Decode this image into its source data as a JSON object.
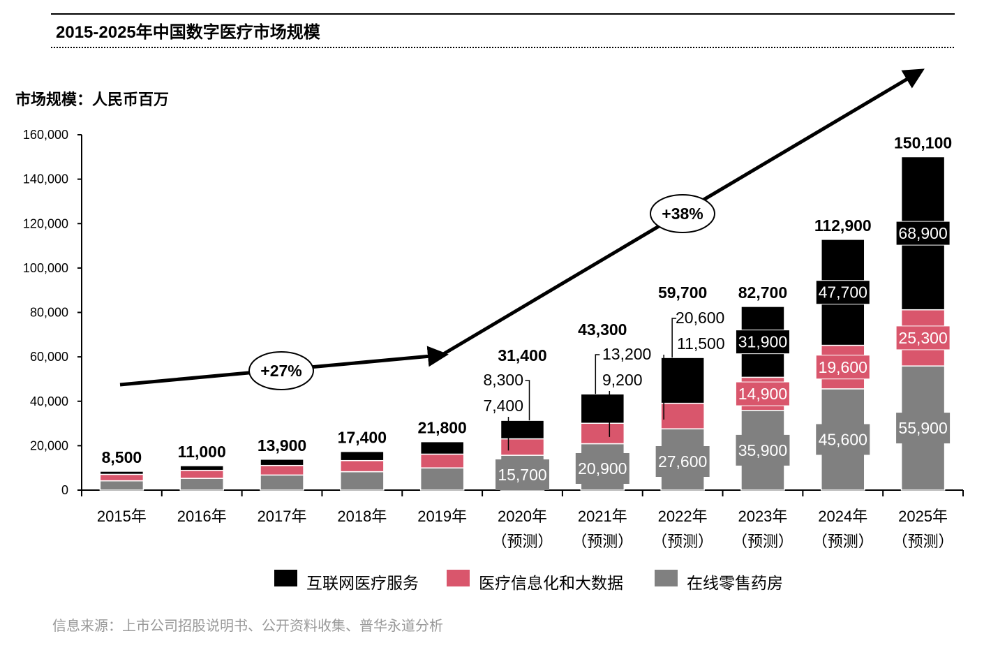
{
  "chart_data": {
    "type": "bar",
    "stacked": true,
    "title": "2015-2025年中国数字医疗市场规模",
    "ylabel": "市场规模：人民币百万",
    "xlabel": "",
    "ylim": [
      0,
      160000
    ],
    "yticks": [
      "0",
      "20,000",
      "40,000",
      "60,000",
      "80,000",
      "100,000",
      "120,000",
      "140,000",
      "160,000"
    ],
    "categories": [
      "2015年",
      "2016年",
      "2017年",
      "2018年",
      "2019年",
      "2020年",
      "2021年",
      "2022年",
      "2023年",
      "2024年",
      "2025年"
    ],
    "category_sublabels": [
      "",
      "",
      "",
      "",
      "",
      "（预测）",
      "（预测）",
      "（预测）",
      "（预测）",
      "（预测）",
      "（预测）"
    ],
    "series": [
      {
        "name": "在线零售药房",
        "color": "#808080",
        "values": [
          4200,
          5300,
          6800,
          8300,
          10000,
          15700,
          20900,
          27600,
          35900,
          45600,
          55900
        ],
        "labels": [
          "",
          "",
          "",
          "",
          "",
          "15,700",
          "20,900",
          "27,600",
          "35,900",
          "45,600",
          "55,900"
        ]
      },
      {
        "name": "医疗信息化和大数据",
        "color": "#D9566C",
        "values": [
          2900,
          3600,
          4300,
          5000,
          6200,
          7400,
          9200,
          11500,
          14900,
          19600,
          25300
        ],
        "labels": [
          "",
          "",
          "",
          "",
          "",
          "7,400",
          "9,200",
          "11,500",
          "14,900",
          "19,600",
          "25,300"
        ]
      },
      {
        "name": "互联网医疗服务",
        "color": "#000000",
        "values": [
          1400,
          2100,
          2800,
          4100,
          5600,
          8300,
          13200,
          20600,
          31900,
          47700,
          68900
        ],
        "labels": [
          "",
          "",
          "",
          "",
          "",
          "8,300",
          "13,200",
          "20,600",
          "31,900",
          "47,700",
          "68,900"
        ]
      }
    ],
    "totals": [
      "8,500",
      "11,000",
      "13,900",
      "17,400",
      "21,800",
      "31,400",
      "43,300",
      "59,700",
      "82,700",
      "112,900",
      "150,100"
    ],
    "annotations": [
      {
        "text": "+27%",
        "from": "2015年",
        "to": "2019年"
      },
      {
        "text": "+38%",
        "from": "2019年",
        "to": "2025年"
      }
    ],
    "legend_position": "bottom",
    "grid": false
  },
  "source": "信息来源：上市公司招股说明书、公开资料收集、普华永道分析"
}
